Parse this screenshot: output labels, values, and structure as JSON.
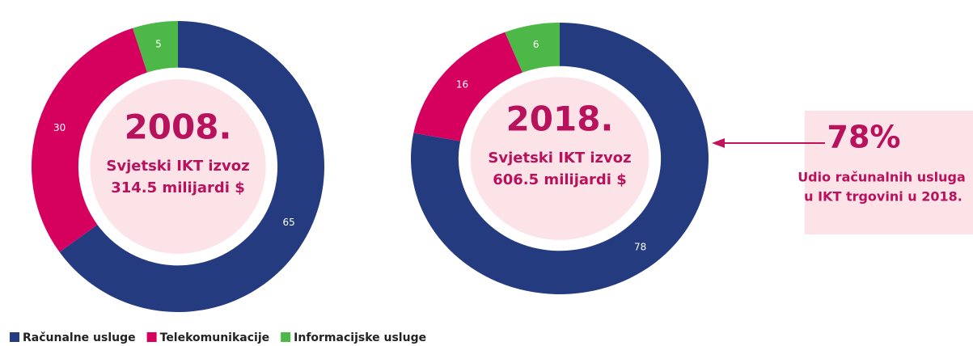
{
  "chart_data": [
    {
      "type": "pie",
      "title": "2008.",
      "subtitle": "Svjetski IKT izvoz",
      "annotation": "314.5 milijardi $",
      "values": [
        65,
        30,
        5
      ]
    },
    {
      "type": "pie",
      "title": "2018.",
      "subtitle": "Svjetski IKT izvoz",
      "annotation": "606.5 milijardi $",
      "values": [
        78,
        16,
        6
      ]
    }
  ],
  "legend": {
    "labels": [
      "Računalne usluge",
      "Telekomunikacije",
      "Informacijske usluge"
    ],
    "colors": [
      "#253b80",
      "#d6005f",
      "#4db848"
    ]
  },
  "callout": {
    "value_label": "78%",
    "text": [
      "Udio računalnih usluga",
      "u IKT trgovini u 2018."
    ]
  }
}
